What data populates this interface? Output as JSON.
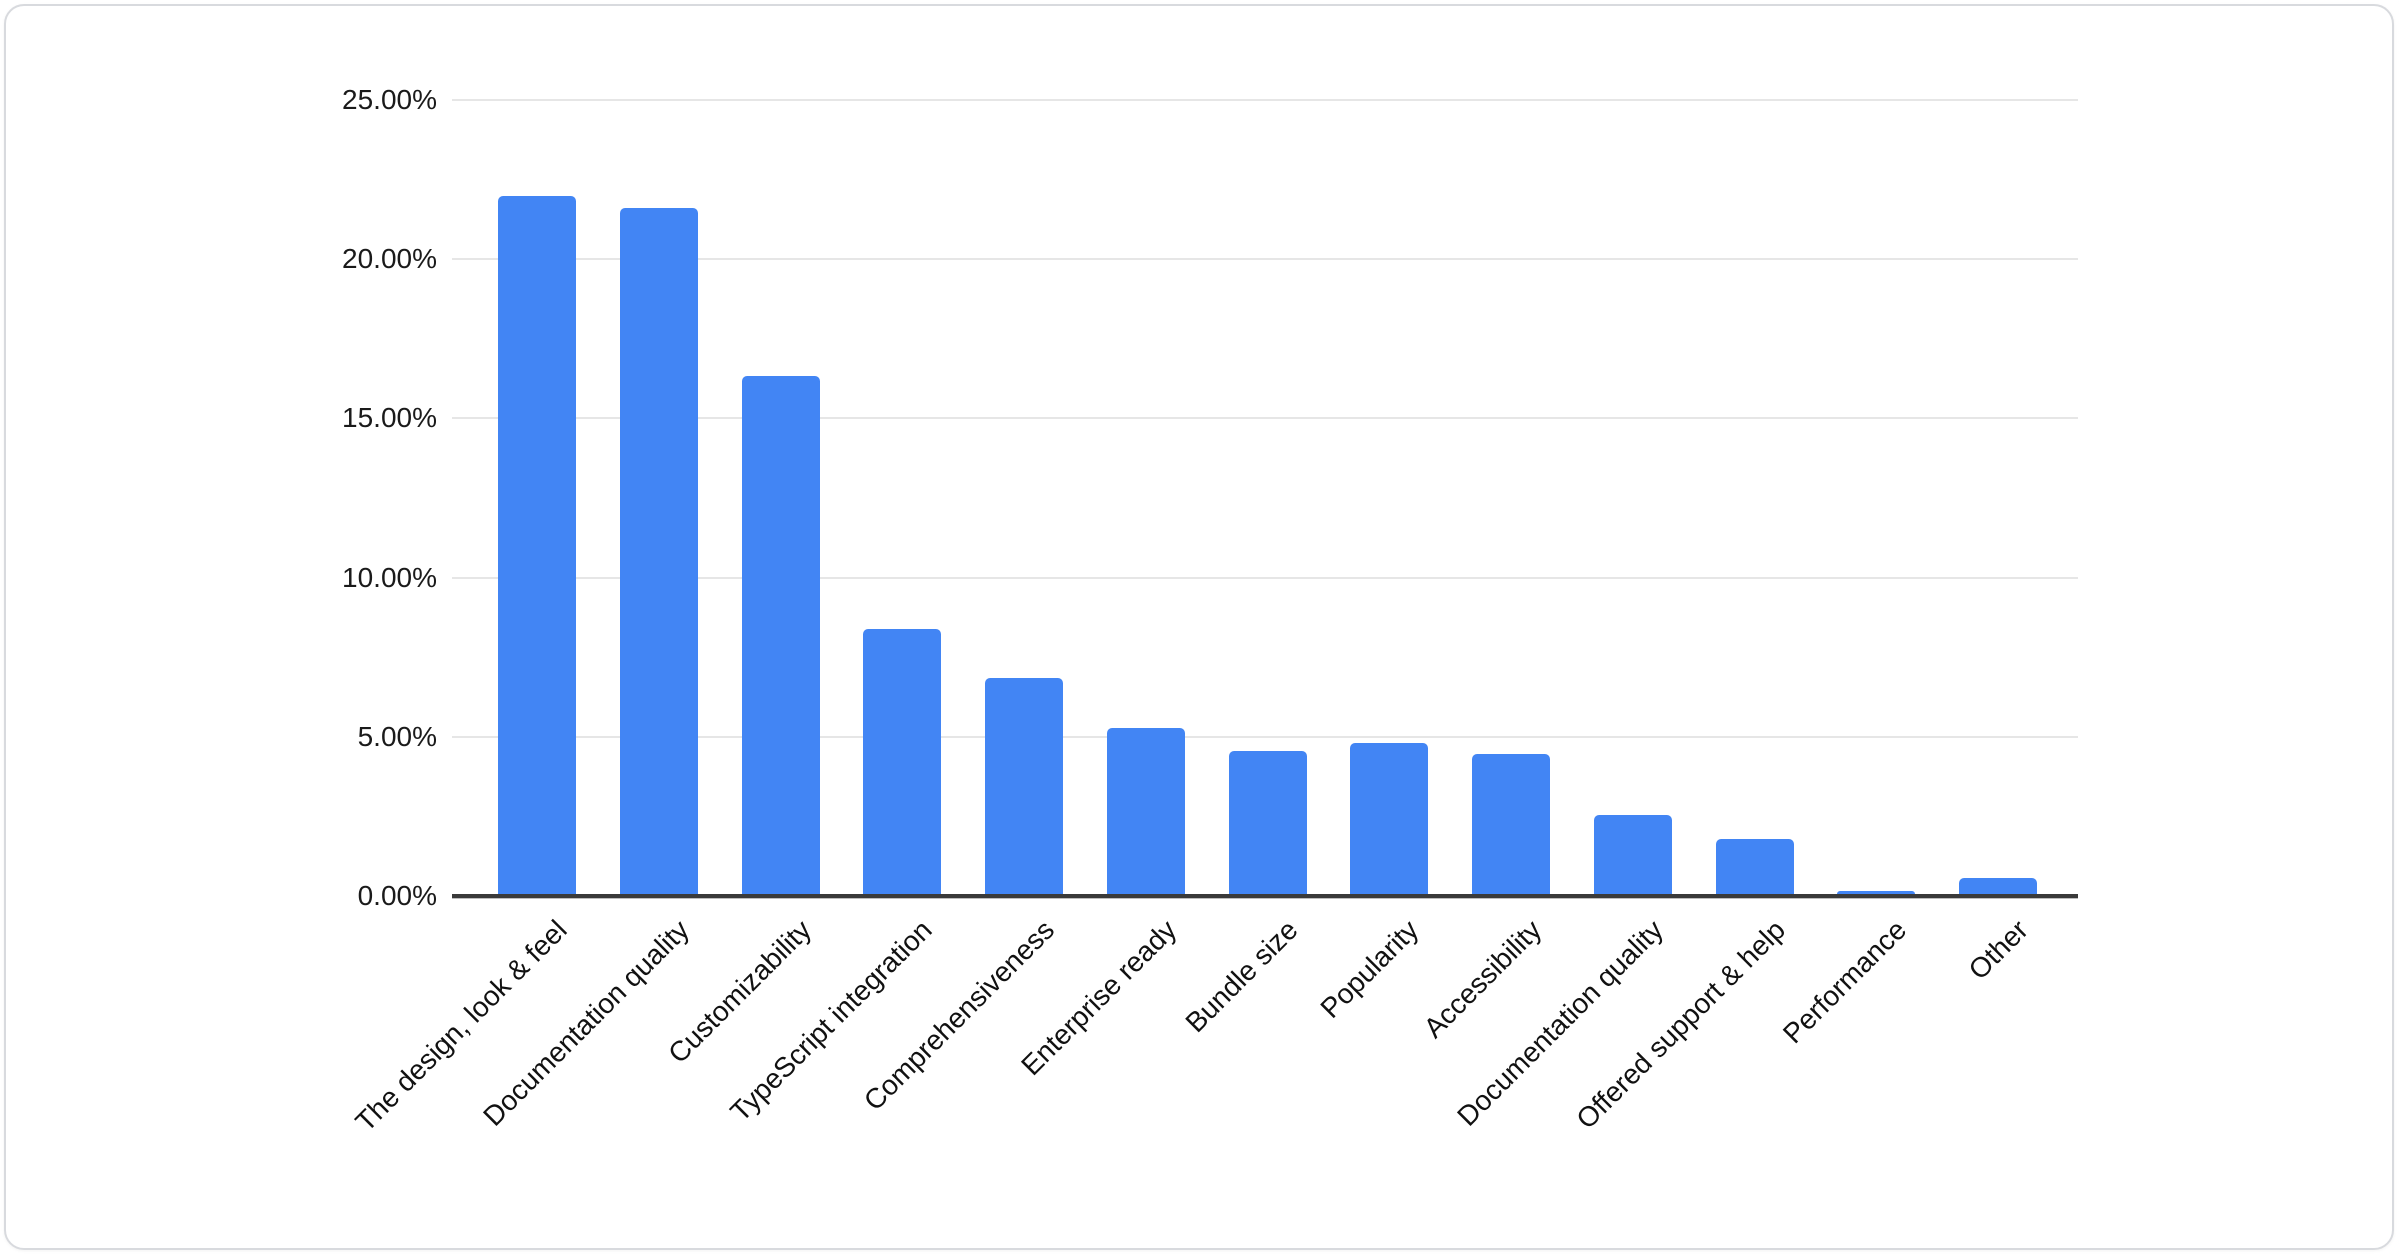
{
  "card": {
    "background": "#ffffff",
    "border_color": "#d8dade"
  },
  "chart_data": {
    "type": "bar",
    "title": "",
    "xlabel": "",
    "ylabel": "",
    "categories": [
      "The design, look & feel",
      "Documentation quality",
      "Customizability",
      "TypeScript integration",
      "Comprehensiveness",
      "Enterprise ready",
      "Bundle size",
      "Popularity",
      "Accessibility",
      "Documentation quality",
      "Offered support & help",
      "Performance",
      "Other"
    ],
    "values": [
      21.98,
      21.61,
      16.33,
      8.4,
      6.85,
      5.28,
      4.55,
      4.81,
      4.45,
      2.54,
      1.79,
      0.15,
      0.57
    ],
    "value_unit": "%",
    "bar_color": "#4285f4",
    "legend": "none",
    "grid": "horizontal",
    "x_label_rotation_deg": 45,
    "axis": {
      "ylim": [
        0,
        25
      ],
      "y_ticks": [
        {
          "label": "25.00%",
          "value": 25
        },
        {
          "label": "20.00%",
          "value": 20
        },
        {
          "label": "15.00%",
          "value": 15
        },
        {
          "label": "10.00%",
          "value": 10
        },
        {
          "label": "5.00%",
          "value": 5
        },
        {
          "label": "0.00%",
          "value": 0
        }
      ],
      "grid_color": "#e6e6e6",
      "axis_line_color": "#3a3a3a",
      "tick_label_color": "#1a1a1a"
    }
  }
}
